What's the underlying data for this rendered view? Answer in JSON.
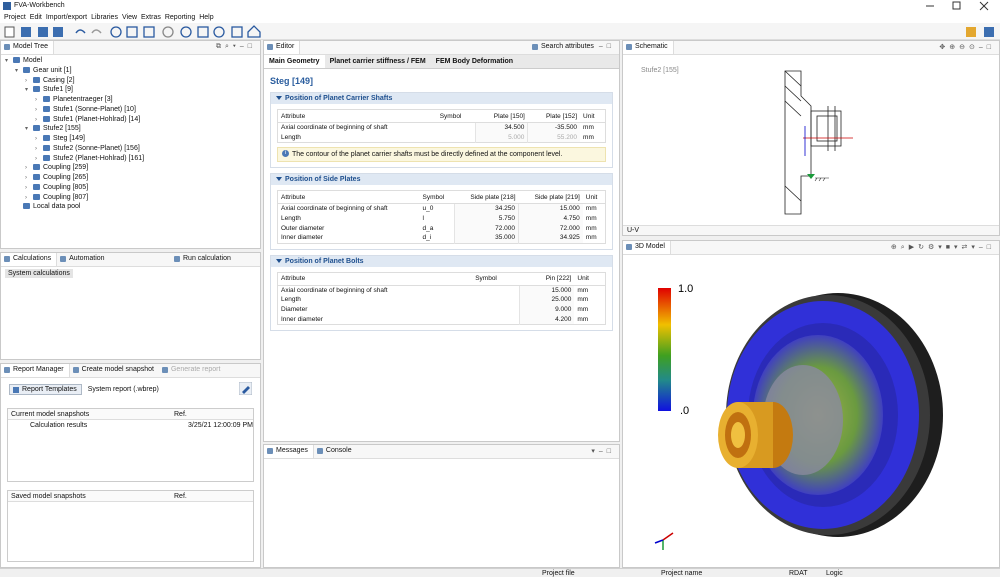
{
  "window": {
    "title": "FVA-Workbench"
  },
  "menu": [
    "Project",
    "Edit",
    "Import/export",
    "Libraries",
    "View",
    "Extras",
    "Reporting",
    "Help"
  ],
  "model_tree": {
    "tab": "Model Tree",
    "items": [
      {
        "label": "Model",
        "children": [
          {
            "label": "Gear unit [1]",
            "children": [
              {
                "label": "Casing [2]"
              },
              {
                "label": "Stufe1 [9]",
                "children": [
                  {
                    "label": "Planetentraeger [3]"
                  },
                  {
                    "label": "Stufe1 (Sonne-Planet) [10]"
                  },
                  {
                    "label": "Stufe1 (Planet-Hohlrad) [14]"
                  }
                ]
              },
              {
                "label": "Stufe2 [155]",
                "children": [
                  {
                    "label": "Steg [149]"
                  },
                  {
                    "label": "Stufe2 (Sonne-Planet) [156]"
                  },
                  {
                    "label": "Stufe2 (Planet-Hohlrad) [161]"
                  }
                ]
              },
              {
                "label": "Coupling [259]"
              },
              {
                "label": "Coupling [265]"
              },
              {
                "label": "Coupling [805]"
              },
              {
                "label": "Coupling [807]"
              }
            ]
          },
          {
            "label": "Local data pool"
          }
        ]
      }
    ]
  },
  "calculations": {
    "tabs": [
      "Calculations",
      "Automation"
    ],
    "run": "Run calculation",
    "items": [
      "System calculations"
    ]
  },
  "report_manager": {
    "tabs": [
      "Report Manager",
      "Create model snapshot",
      "Generate report"
    ],
    "templates_button": "Report Templates",
    "template": "System report (.wbrep)",
    "current": {
      "columns": [
        "Current model snapshots",
        "Ref."
      ],
      "rows": [
        [
          "Calculation results",
          "3/25/21 12:00:09 PM"
        ]
      ]
    },
    "saved": {
      "columns": [
        "Saved model snapshots",
        "Ref."
      ],
      "rows": []
    }
  },
  "editor": {
    "tab": "Editor",
    "search": "Search attributes",
    "subtabs": [
      "Main Geometry",
      "Planet carrier stiffness / FEM",
      "FEM Body Deformation"
    ],
    "heading": "Steg [149]",
    "sections": [
      {
        "title": "Position of Planet Carrier Shafts",
        "columns": [
          "Attribute",
          "Symbol",
          "Plate [150]",
          "Plate [152]",
          "Unit"
        ],
        "rows": [
          [
            "Axial coordinate of beginning of shaft",
            "",
            "34.500",
            "-35.500",
            "mm"
          ],
          [
            "Length",
            "",
            "5.000",
            "55.200",
            "mm"
          ]
        ],
        "info": "The contour of the planet carrier shafts must be directly defined at the component level."
      },
      {
        "title": "Position of Side Plates",
        "columns": [
          "Attribute",
          "Symbol",
          "Side plate [218]",
          "Side plate [219]",
          "Unit"
        ],
        "rows": [
          [
            "Axial coordinate of beginning of shaft",
            "u_0",
            "34.250",
            "15.000",
            "mm"
          ],
          [
            "Length",
            "l",
            "5.750",
            "4.750",
            "mm"
          ],
          [
            "Outer diameter",
            "d_a",
            "72.000",
            "72.000",
            "mm"
          ],
          [
            "Inner diameter",
            "d_i",
            "35.000",
            "34.925",
            "mm"
          ]
        ]
      },
      {
        "title": "Position of Planet Bolts",
        "columns": [
          "Attribute",
          "Symbol",
          "Pin [222]",
          "Unit"
        ],
        "rows": [
          [
            "Axial coordinate of beginning of shaft",
            "",
            "15.000",
            "mm"
          ],
          [
            "Length",
            "",
            "25.000",
            "mm"
          ],
          [
            "Diameter",
            "",
            "9.000",
            "mm"
          ],
          [
            "Inner diameter",
            "",
            "4.200",
            "mm"
          ]
        ]
      }
    ]
  },
  "messages": {
    "tabs": [
      "Messages",
      "Console"
    ]
  },
  "schematic": {
    "tab": "Schematic",
    "label": "Stufe2 [155]",
    "view": "U-V"
  },
  "model_3d": {
    "tab": "3D Model",
    "legend": {
      "max": "1.0",
      "min": ".0"
    }
  },
  "status": [
    "Project file",
    "Project name",
    "RDAT",
    "Logic"
  ]
}
